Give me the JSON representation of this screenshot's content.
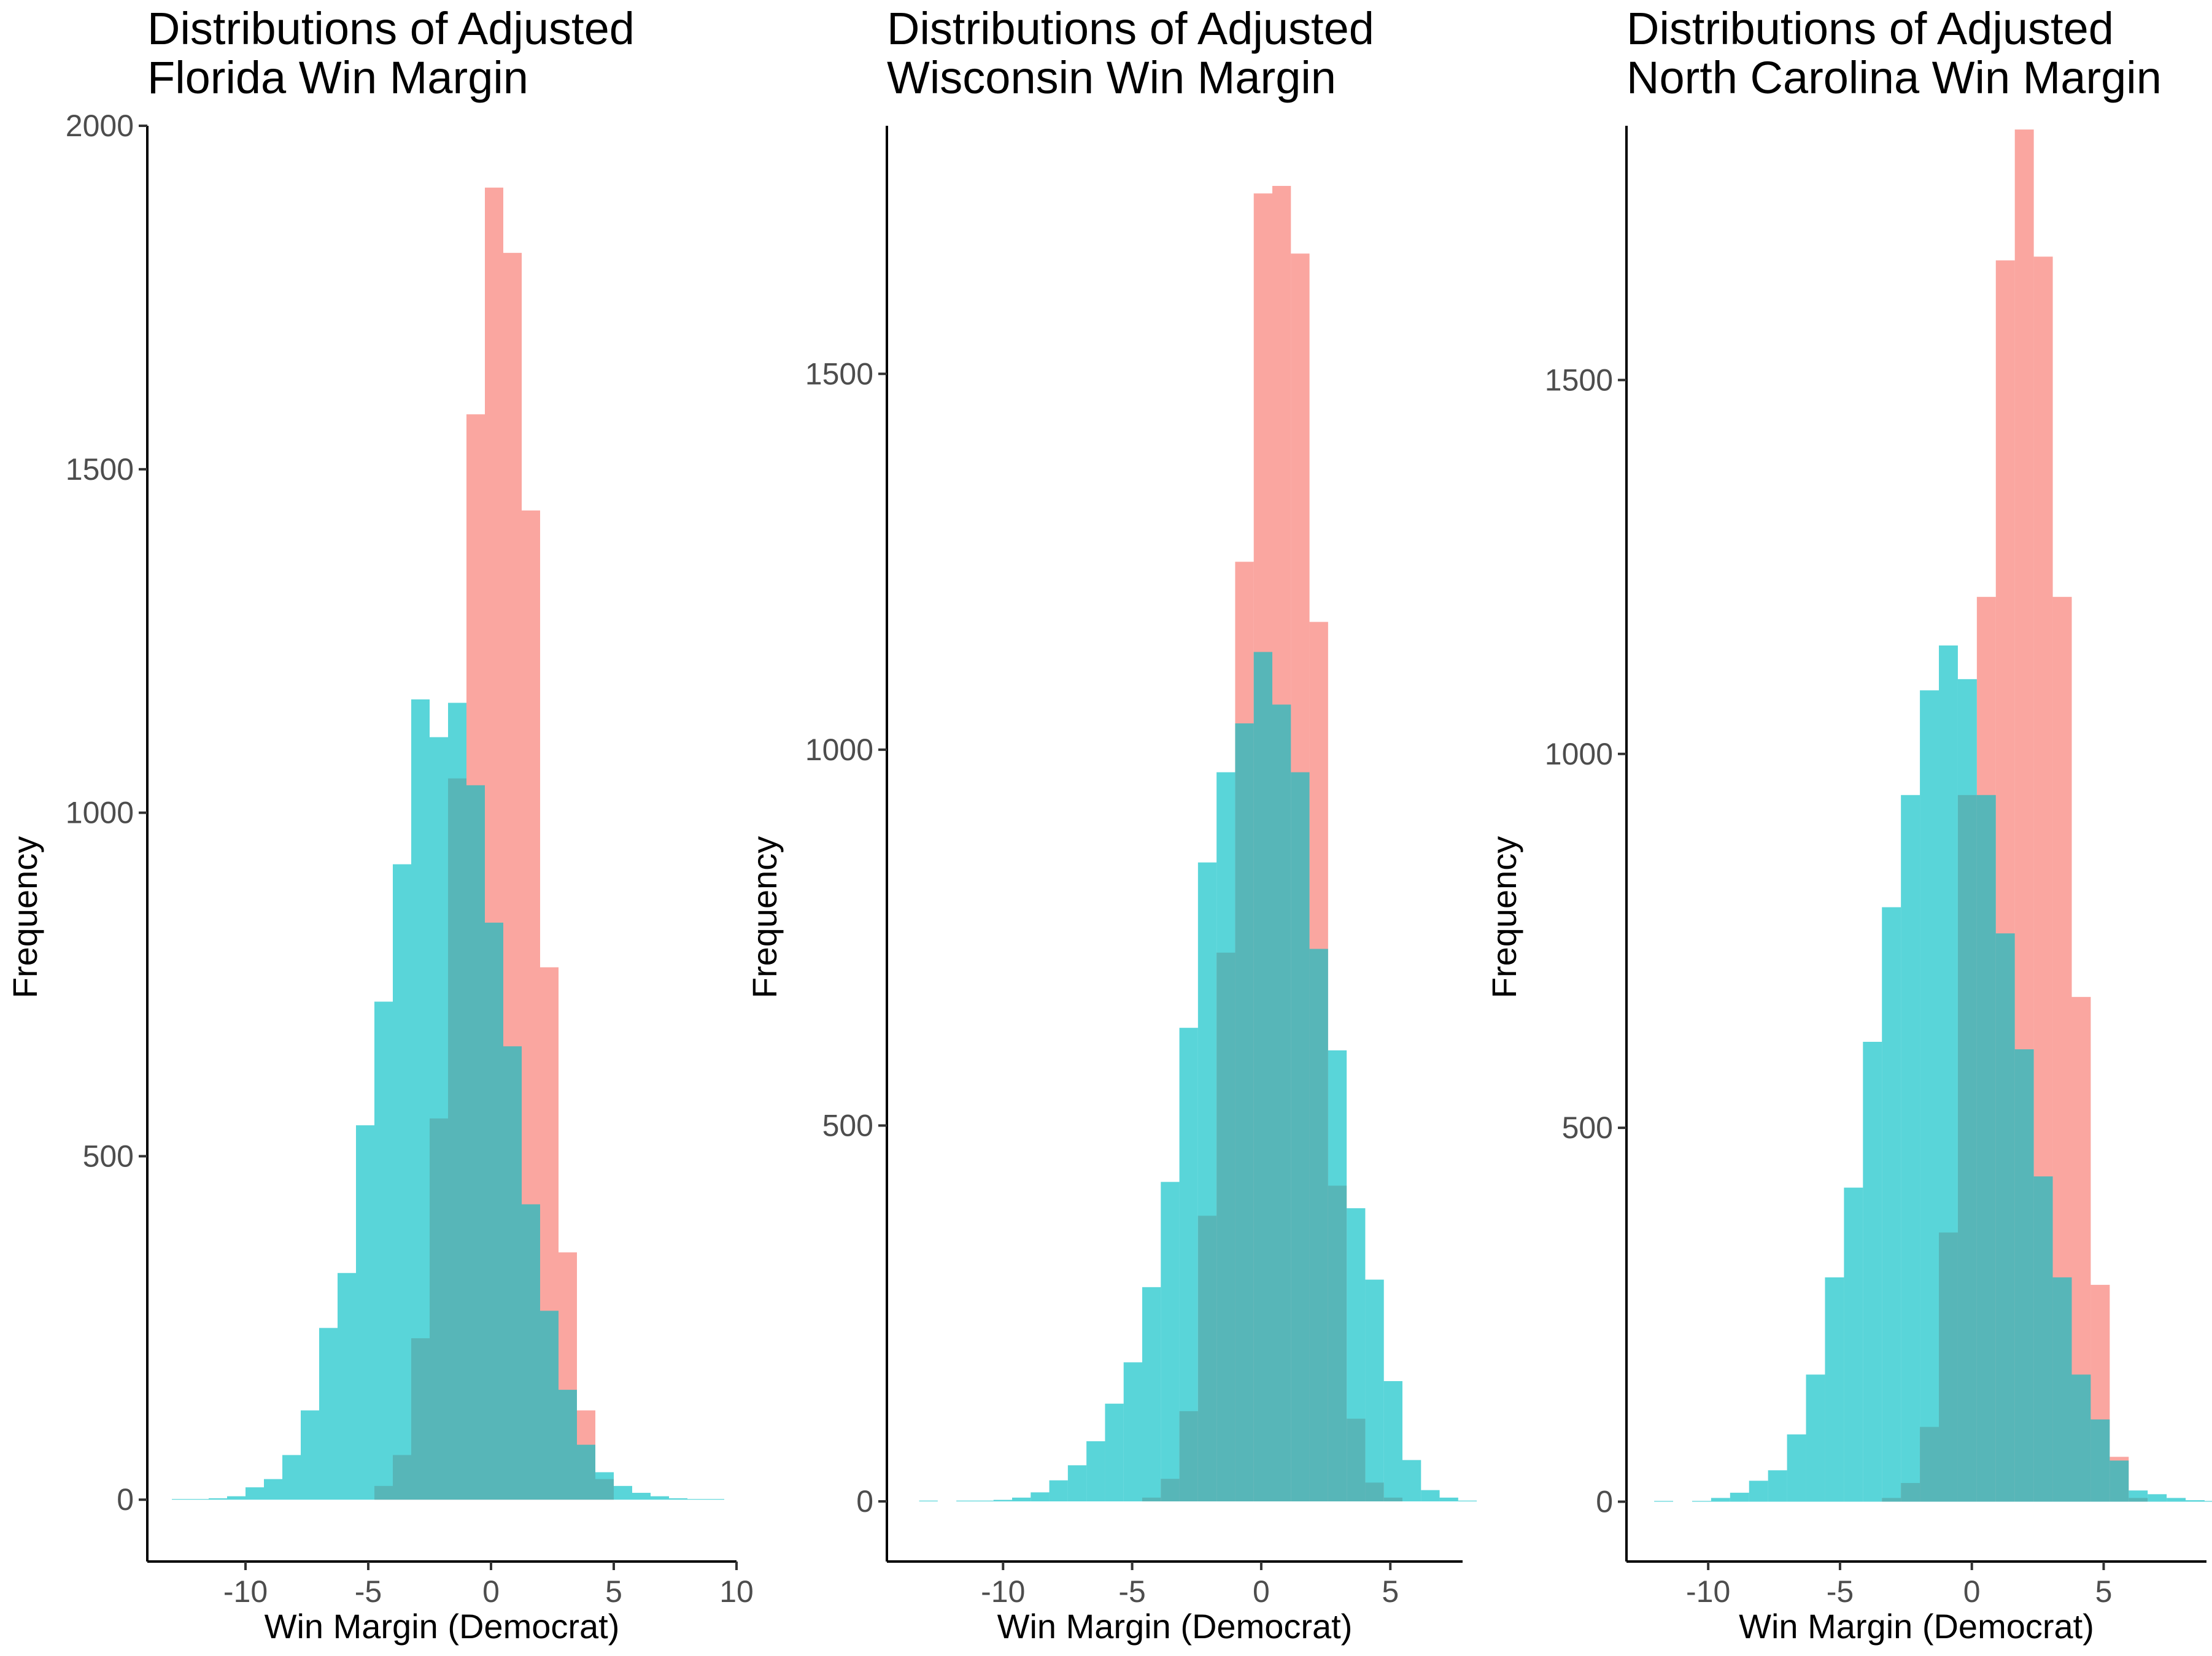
{
  "chart_data": [
    {
      "type": "histogram",
      "title_lines": [
        "Distributions of Adjusted",
        "Florida Win Margin"
      ],
      "xlabel": "Win Margin (Democrat)",
      "ylabel": "Frequency",
      "xlim": [
        -14,
        10
      ],
      "ylim": [
        -90,
        2000
      ],
      "xticks": [
        -10,
        -5,
        0,
        5,
        10
      ],
      "yticks": [
        0,
        500,
        1000,
        1500,
        2000
      ],
      "legend": "none",
      "bin_start": -13,
      "bin_width": 0.75,
      "series": [
        {
          "color": "#F8766D",
          "values": [
            0,
            0,
            0,
            0,
            0,
            0,
            0,
            0,
            0,
            0,
            0,
            20,
            65,
            235,
            555,
            1050,
            1580,
            1910,
            1815,
            1440,
            775,
            360,
            130,
            30,
            0,
            0,
            0,
            0,
            0,
            0,
            0,
            0
          ]
        },
        {
          "color": "#00BFC4",
          "values": [
            1,
            1,
            2,
            5,
            18,
            30,
            65,
            130,
            250,
            330,
            545,
            725,
            925,
            1165,
            1110,
            1160,
            1040,
            840,
            660,
            430,
            275,
            160,
            80,
            40,
            20,
            10,
            5,
            2,
            1,
            1,
            0,
            0
          ]
        }
      ]
    },
    {
      "type": "histogram",
      "title_lines": [
        "Distributions of Adjusted",
        "Wisconsin Win Margin"
      ],
      "xlabel": "Win Margin (Democrat)",
      "ylabel": "Frequency",
      "xlim": [
        -14.5,
        7.8
      ],
      "ylim": [
        -80,
        1830
      ],
      "xticks": [
        -10,
        -5,
        0,
        5
      ],
      "yticks": [
        0,
        500,
        1000,
        1500
      ],
      "legend": "none",
      "bin_start": -13.25,
      "bin_width": 0.72,
      "series": [
        {
          "color": "#F8766D",
          "values": [
            0,
            0,
            0,
            0,
            0,
            0,
            0,
            0,
            0,
            0,
            0,
            0,
            5,
            30,
            120,
            380,
            730,
            1250,
            1740,
            1750,
            1660,
            1170,
            420,
            110,
            25,
            5,
            0,
            0,
            0,
            0
          ]
        },
        {
          "color": "#00BFC4",
          "values": [
            1,
            0,
            1,
            1,
            2,
            5,
            12,
            28,
            48,
            80,
            130,
            185,
            285,
            425,
            630,
            850,
            970,
            1035,
            1130,
            1060,
            970,
            735,
            600,
            390,
            295,
            160,
            55,
            15,
            5,
            1
          ]
        }
      ]
    },
    {
      "type": "histogram",
      "title_lines": [
        "Distributions of Adjusted",
        "North Carolina Win Margin"
      ],
      "xlabel": "Win Margin (Democrat)",
      "ylabel": "Frequency",
      "xlim": [
        -13.1,
        8.9
      ],
      "ylim": [
        -80,
        1840
      ],
      "xticks": [
        -10,
        -5,
        0,
        5
      ],
      "yticks": [
        0,
        500,
        1000,
        1500
      ],
      "legend": "none",
      "bin_start": -12.05,
      "bin_width": 0.72,
      "series": [
        {
          "color": "#F8766D",
          "values": [
            0,
            0,
            0,
            0,
            0,
            0,
            0,
            0,
            0,
            0,
            0,
            0,
            5,
            25,
            100,
            360,
            945,
            1210,
            1660,
            1835,
            1665,
            1210,
            675,
            290,
            60,
            5,
            0,
            0,
            0,
            0
          ]
        },
        {
          "color": "#00BFC4",
          "values": [
            1,
            0,
            1,
            5,
            12,
            28,
            42,
            90,
            170,
            300,
            420,
            615,
            795,
            945,
            1085,
            1145,
            1100,
            945,
            760,
            605,
            435,
            300,
            170,
            110,
            55,
            15,
            10,
            5,
            2,
            1
          ]
        }
      ]
    }
  ]
}
